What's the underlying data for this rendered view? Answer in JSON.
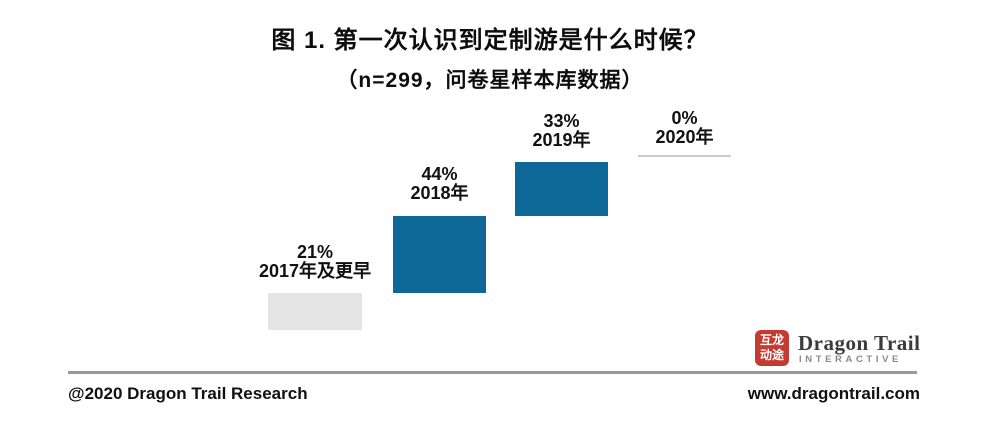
{
  "chart_data": {
    "type": "bar",
    "variant": "waterfall-steps",
    "title": "图 1. 第一次认识到定制游是什么时候？",
    "subtitle": "（n=299，问卷星样本库数据）",
    "categories": [
      "2017年及更早",
      "2018年",
      "2019年",
      "2020年"
    ],
    "values": [
      21,
      44,
      33,
      0
    ],
    "unit": "%",
    "value_labels": [
      "21%",
      "44%",
      "33%",
      "0%"
    ],
    "ylim": [
      0,
      100
    ],
    "grid": false,
    "legend": false,
    "colors": {
      "bar_2017": "#e4e4e4",
      "bar_2018": "#0e6897",
      "bar_2019": "#0e6897",
      "bar_2020_line": "#cccccc"
    }
  },
  "footer": {
    "copyright": "@2020 Dragon Trail Research",
    "website": "www.dragontrail.com",
    "divider_color": "#999999"
  },
  "logo": {
    "seal_row1": "互龙",
    "seal_row2": "动途",
    "seal_color": "#c23a31",
    "wordmark": "Dragon Trail",
    "tagline": "INTERACTIVE"
  },
  "colors": {
    "background": "#ffffff",
    "text": "#111111",
    "accent_blue": "#0e6897",
    "light_gray_bar": "#e4e4e4"
  }
}
